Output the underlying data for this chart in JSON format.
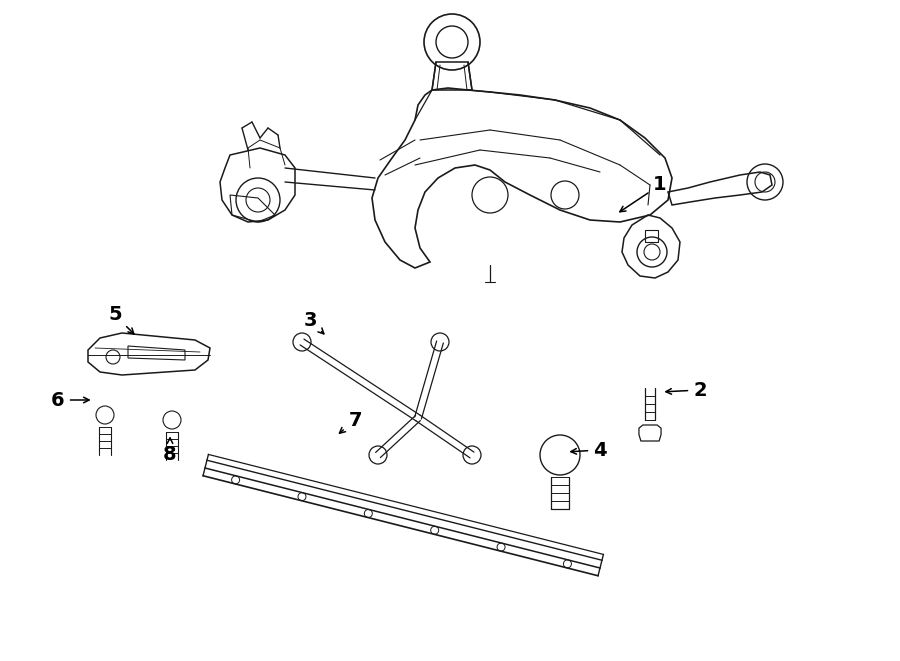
{
  "background_color": "#ffffff",
  "line_color": "#1a1a1a",
  "label_color": "#000000",
  "fig_w": 9.0,
  "fig_h": 6.61,
  "dpi": 100,
  "label_positions": {
    "1": [
      660,
      185,
      615,
      215
    ],
    "2": [
      700,
      390,
      660,
      392
    ],
    "3": [
      310,
      320,
      328,
      338
    ],
    "4": [
      600,
      450,
      565,
      452
    ],
    "5": [
      115,
      315,
      138,
      338
    ],
    "6": [
      58,
      400,
      95,
      400
    ],
    "7": [
      355,
      420,
      335,
      437
    ],
    "8": [
      170,
      455,
      170,
      432
    ]
  }
}
